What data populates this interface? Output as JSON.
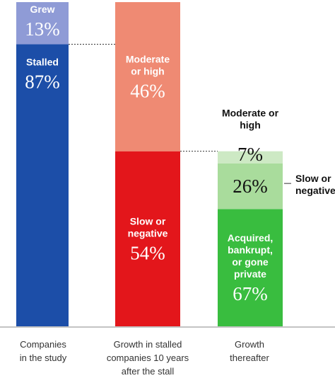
{
  "colors": {
    "blue": "#1c4ea8",
    "lavender": "#8f9bd6",
    "red": "#e3161b",
    "salmon": "#ef8a73",
    "green": "#39bd3f",
    "mint": "#a9dc9c",
    "pale_green": "#cde9c4",
    "baseline": "#888888",
    "connector": "#333333"
  },
  "chart_data": {
    "type": "bar",
    "stacked": true,
    "unit": "%",
    "categories": [
      [
        "Companies",
        "in the study"
      ],
      [
        "Growth in stalled",
        "companies 10 years",
        "after the stall"
      ],
      [
        "Growth",
        "thereafter"
      ]
    ],
    "bars": [
      {
        "segments": [
          {
            "value": 87,
            "value_text": "87%",
            "label": [
              "Stalled"
            ],
            "color": "blue",
            "text_color": "#ffffff"
          },
          {
            "value": 13,
            "value_text": "13%",
            "label": [
              "Grew"
            ],
            "color": "lavender",
            "text_color": "#ffffff"
          }
        ]
      },
      {
        "segments": [
          {
            "value": 54,
            "value_text": "54%",
            "label": [
              "Slow or",
              "negative"
            ],
            "color": "red",
            "text_color": "#ffffff"
          },
          {
            "value": 46,
            "value_text": "46%",
            "label": [
              "Moderate",
              "or high"
            ],
            "color": "salmon",
            "text_color": "#ffffff"
          }
        ]
      },
      {
        "segments": [
          {
            "value": 67,
            "value_text": "67%",
            "label": [
              "Acquired,",
              "bankrupt,",
              "or gone",
              "private"
            ],
            "color": "green",
            "text_color": "#ffffff"
          },
          {
            "value": 26,
            "value_text": "26%",
            "label": [
              "Slow or",
              "negative"
            ],
            "color": "mint",
            "text_color": "#111111",
            "label_outside": true
          },
          {
            "value": 7,
            "value_text": "7%",
            "label": [
              "Moderate or",
              "high"
            ],
            "color": "pale_green",
            "text_color": "#111111",
            "label_above": true
          }
        ]
      }
    ]
  }
}
